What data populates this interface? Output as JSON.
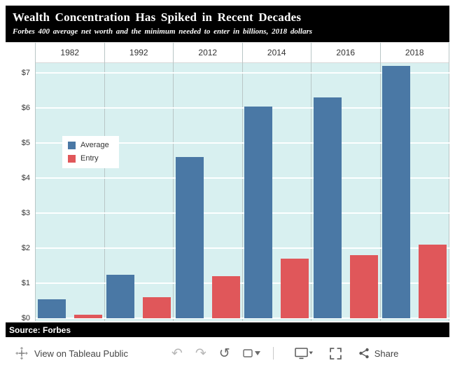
{
  "header": {
    "title": "Wealth Concentration Has Spiked in Recent Decades",
    "subtitle": "Forbes 400 average net worth and the minimum needed to enter in billions, 2018 dollars"
  },
  "chart_data": {
    "type": "bar",
    "categories": [
      "1982",
      "1992",
      "2012",
      "2014",
      "2016",
      "2018"
    ],
    "series": [
      {
        "name": "Average",
        "color": "#4a78a5",
        "values": [
          0.55,
          1.25,
          4.6,
          6.05,
          6.3,
          7.2
        ]
      },
      {
        "name": "Entry",
        "color": "#e0575a",
        "values": [
          0.1,
          0.6,
          1.2,
          1.7,
          1.8,
          2.1
        ]
      }
    ],
    "title": "Wealth Concentration Has Spiked in Recent Decades",
    "xlabel": "",
    "ylabel": "",
    "ytick_labels": [
      "$0",
      "$1",
      "$2",
      "$3",
      "$4",
      "$5",
      "$6",
      "$7"
    ],
    "ylim": [
      0,
      7.3
    ],
    "grid": true,
    "legend_position": "inside-upper-left",
    "plot_background": "#d8f0f0"
  },
  "legend": {
    "items": [
      {
        "label": "Average",
        "color": "#4a78a5"
      },
      {
        "label": "Entry",
        "color": "#e0575a"
      }
    ]
  },
  "source": {
    "text": "Source: Forbes"
  },
  "toolbar": {
    "view_label": "View on Tableau Public",
    "share_label": "Share",
    "buttons": [
      {
        "name": "undo",
        "glyph": "↶"
      },
      {
        "name": "redo",
        "glyph": "↷"
      },
      {
        "name": "replay",
        "glyph": "↺"
      }
    ]
  },
  "colors": {
    "average_bar": "#4a78a5",
    "entry_bar": "#e0575a",
    "plot_background": "#d8f0f0",
    "header_background": "#000000"
  }
}
